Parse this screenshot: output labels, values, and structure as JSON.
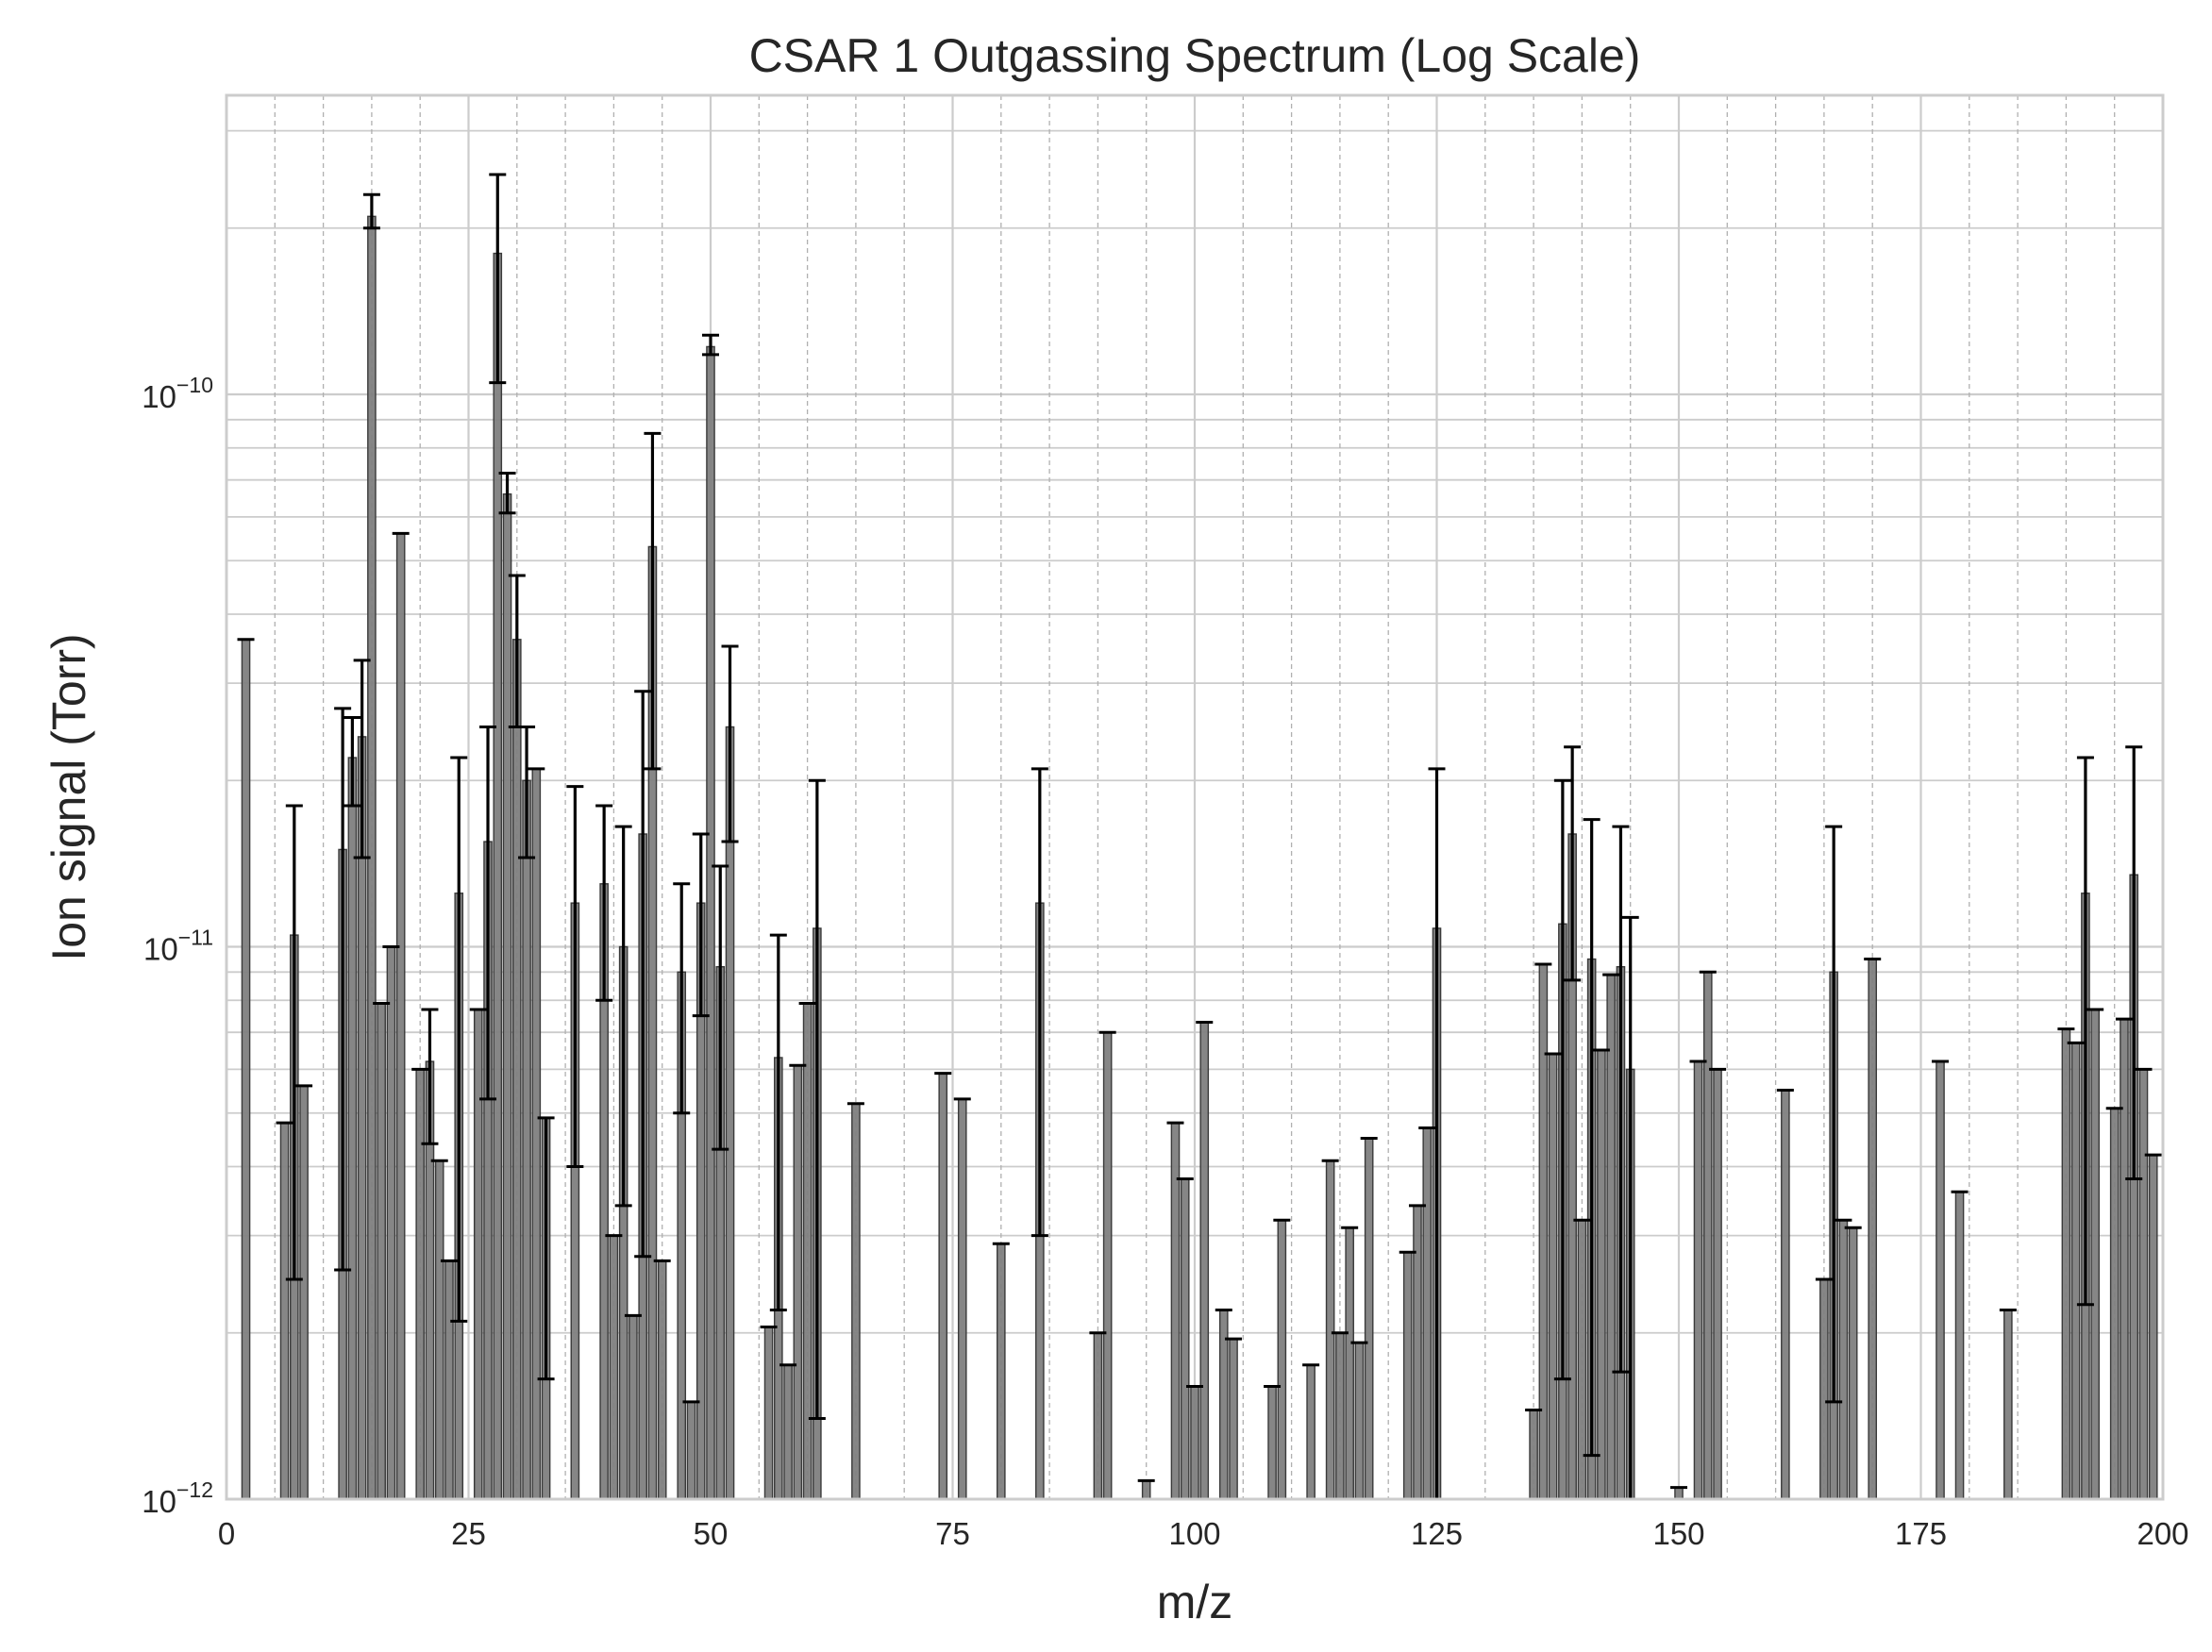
{
  "chart_data": {
    "type": "bar",
    "title": "CSAR 1 Outgassing Spectrum (Log Scale)",
    "xlabel": "m/z",
    "ylabel": "Ion signal (Torr)",
    "xlim": [
      0,
      200
    ],
    "ylim": [
      1e-12,
      3.3e-10
    ],
    "yscale": "log",
    "grid": true,
    "legend": "none",
    "bar_color": "#7f7f7f",
    "bar_edge_color": "#3a3a3a",
    "errorbar_color": "#000000",
    "x_ticks": [
      "0",
      "25",
      "50",
      "75",
      "100",
      "125",
      "150",
      "175",
      "200"
    ],
    "y_ticks": [
      {
        "base": "10",
        "exp": "−12"
      },
      {
        "base": "10",
        "exp": "−11"
      },
      {
        "base": "10",
        "exp": "−10"
      }
    ],
    "bars": [
      {
        "x": 2,
        "y": 3.6e-11
      },
      {
        "x": 6,
        "y": 4.8e-12
      },
      {
        "x": 7,
        "y": 1.05e-11,
        "lo": 2.5e-12,
        "hi": 1.8e-11
      },
      {
        "x": 8,
        "y": 5.6e-12
      },
      {
        "x": 12,
        "y": 1.5e-11,
        "lo": 2.6e-12,
        "hi": 2.7e-11
      },
      {
        "x": 13,
        "y": 2.2e-11,
        "lo": 1.8e-11,
        "hi": 2.6e-11
      },
      {
        "x": 14,
        "y": 2.4e-11,
        "lo": 1.45e-11,
        "hi": 3.3e-11
      },
      {
        "x": 15,
        "y": 2.1e-10,
        "lo": 2e-10,
        "hi": 2.3e-10
      },
      {
        "x": 16,
        "y": 7.9e-12
      },
      {
        "x": 17,
        "y": 1e-11
      },
      {
        "x": 18,
        "y": 5.6e-11
      },
      {
        "x": 20,
        "y": 6e-12
      },
      {
        "x": 21,
        "y": 6.2e-12,
        "lo": 4.4e-12,
        "hi": 7.7e-12
      },
      {
        "x": 22,
        "y": 4.1e-12
      },
      {
        "x": 23,
        "y": 2.7e-12
      },
      {
        "x": 24,
        "y": 1.25e-11,
        "lo": 2.1e-12,
        "hi": 2.2e-11
      },
      {
        "x": 26,
        "y": 7.7e-12
      },
      {
        "x": 27,
        "y": 1.55e-11,
        "lo": 5.3e-12,
        "hi": 2.5e-11
      },
      {
        "x": 28,
        "y": 1.8e-10,
        "lo": 1.05e-10,
        "hi": 2.5e-10
      },
      {
        "x": 29,
        "y": 6.6e-11,
        "lo": 6.1e-11,
        "hi": 7.2e-11
      },
      {
        "x": 30,
        "y": 3.6e-11,
        "lo": 2.5e-11,
        "hi": 4.7e-11
      },
      {
        "x": 31,
        "y": 2e-11,
        "lo": 1.45e-11,
        "hi": 2.5e-11
      },
      {
        "x": 32,
        "y": 2.1e-11
      },
      {
        "x": 33,
        "y": 4.9e-12,
        "lo": 1.65e-12,
        "hi": 4.9e-12
      },
      {
        "x": 36,
        "y": 1.2e-11,
        "lo": 4e-12,
        "hi": 1.95e-11
      },
      {
        "x": 39,
        "y": 1.3e-11,
        "lo": 8e-12,
        "hi": 1.8e-11
      },
      {
        "x": 40,
        "y": 3e-12
      },
      {
        "x": 41,
        "y": 1e-11,
        "lo": 3.4e-12,
        "hi": 1.65e-11
      },
      {
        "x": 42,
        "y": 2.15e-12
      },
      {
        "x": 43,
        "y": 1.6e-11,
        "lo": 2.75e-12,
        "hi": 2.9e-11
      },
      {
        "x": 44,
        "y": 5.3e-11,
        "lo": 2.1e-11,
        "hi": 8.5e-11
      },
      {
        "x": 45,
        "y": 2.7e-12
      },
      {
        "x": 47,
        "y": 9e-12,
        "lo": 5e-12,
        "hi": 1.3e-11
      },
      {
        "x": 48,
        "y": 1.5e-12
      },
      {
        "x": 49,
        "y": 1.2e-11,
        "lo": 7.5e-12,
        "hi": 1.6e-11
      },
      {
        "x": 50,
        "y": 1.22e-10,
        "lo": 1.18e-10,
        "hi": 1.28e-10
      },
      {
        "x": 51,
        "y": 9.2e-12,
        "lo": 4.3e-12,
        "hi": 1.4e-11
      },
      {
        "x": 52,
        "y": 2.5e-11,
        "lo": 1.55e-11,
        "hi": 3.5e-11
      },
      {
        "x": 56,
        "y": 2.05e-12
      },
      {
        "x": 57,
        "y": 6.3e-12,
        "lo": 2.2e-12,
        "hi": 1.05e-11
      },
      {
        "x": 58,
        "y": 1.75e-12
      },
      {
        "x": 59,
        "y": 6.1e-12
      },
      {
        "x": 60,
        "y": 7.9e-12
      },
      {
        "x": 61,
        "y": 1.08e-11,
        "lo": 1.4e-12,
        "hi": 2e-11
      },
      {
        "x": 65,
        "y": 5.2e-12
      },
      {
        "x": 74,
        "y": 5.9e-12
      },
      {
        "x": 76,
        "y": 5.3e-12
      },
      {
        "x": 80,
        "y": 2.9e-12
      },
      {
        "x": 84,
        "y": 1.2e-11,
        "lo": 3e-12,
        "hi": 2.1e-11
      },
      {
        "x": 90,
        "y": 2e-12
      },
      {
        "x": 91,
        "y": 7e-12
      },
      {
        "x": 95,
        "y": 1.08e-12
      },
      {
        "x": 98,
        "y": 4.8e-12
      },
      {
        "x": 99,
        "y": 3.8e-12
      },
      {
        "x": 100,
        "y": 1.6e-12
      },
      {
        "x": 101,
        "y": 7.3e-12
      },
      {
        "x": 103,
        "y": 2.2e-12
      },
      {
        "x": 104,
        "y": 1.95e-12
      },
      {
        "x": 108,
        "y": 1.6e-12
      },
      {
        "x": 109,
        "y": 3.2e-12
      },
      {
        "x": 112,
        "y": 1.75e-12
      },
      {
        "x": 114,
        "y": 4.1e-12
      },
      {
        "x": 115,
        "y": 2e-12
      },
      {
        "x": 116,
        "y": 3.1e-12
      },
      {
        "x": 117,
        "y": 1.92e-12
      },
      {
        "x": 118,
        "y": 4.5e-12
      },
      {
        "x": 122,
        "y": 2.8e-12
      },
      {
        "x": 123,
        "y": 3.4e-12
      },
      {
        "x": 124,
        "y": 4.7e-12
      },
      {
        "x": 125,
        "y": 1.08e-11,
        "lo": 1e-12,
        "hi": 2.1e-11
      },
      {
        "x": 135,
        "y": 1.45e-12
      },
      {
        "x": 136,
        "y": 9.3e-12
      },
      {
        "x": 137,
        "y": 6.4e-12
      },
      {
        "x": 138,
        "y": 1.1e-11,
        "lo": 1.65e-12,
        "hi": 2e-11
      },
      {
        "x": 139,
        "y": 1.6e-11,
        "lo": 8.7e-12,
        "hi": 2.3e-11
      },
      {
        "x": 140,
        "y": 3.2e-12
      },
      {
        "x": 141,
        "y": 9.5e-12,
        "lo": 1.2e-12,
        "hi": 1.7e-11
      },
      {
        "x": 142,
        "y": 6.5e-12
      },
      {
        "x": 143,
        "y": 8.9e-12
      },
      {
        "x": 144,
        "y": 9.2e-12,
        "lo": 1.7e-12,
        "hi": 1.65e-11
      },
      {
        "x": 145,
        "y": 6e-12,
        "lo": 1e-12,
        "hi": 1.13e-11
      },
      {
        "x": 150,
        "y": 1.05e-12
      },
      {
        "x": 152,
        "y": 6.2e-12
      },
      {
        "x": 153,
        "y": 9e-12
      },
      {
        "x": 154,
        "y": 6e-12
      },
      {
        "x": 161,
        "y": 5.5e-12
      },
      {
        "x": 165,
        "y": 2.5e-12
      },
      {
        "x": 166,
        "y": 9e-12,
        "lo": 1.5e-12,
        "hi": 1.65e-11
      },
      {
        "x": 167,
        "y": 3.2e-12
      },
      {
        "x": 168,
        "y": 3.1e-12
      },
      {
        "x": 170,
        "y": 9.5e-12
      },
      {
        "x": 177,
        "y": 6.2e-12
      },
      {
        "x": 179,
        "y": 3.6e-12
      },
      {
        "x": 184,
        "y": 2.2e-12
      },
      {
        "x": 190,
        "y": 7.1e-12
      },
      {
        "x": 191,
        "y": 6.7e-12
      },
      {
        "x": 192,
        "y": 1.25e-11,
        "lo": 2.25e-12,
        "hi": 2.2e-11
      },
      {
        "x": 193,
        "y": 7.7e-12
      },
      {
        "x": 195,
        "y": 5.1e-12
      },
      {
        "x": 196,
        "y": 7.4e-12
      },
      {
        "x": 197,
        "y": 1.35e-11,
        "lo": 3.8e-12,
        "hi": 2.3e-11
      },
      {
        "x": 198,
        "y": 6e-12
      },
      {
        "x": 199,
        "y": 4.2e-12
      }
    ]
  }
}
